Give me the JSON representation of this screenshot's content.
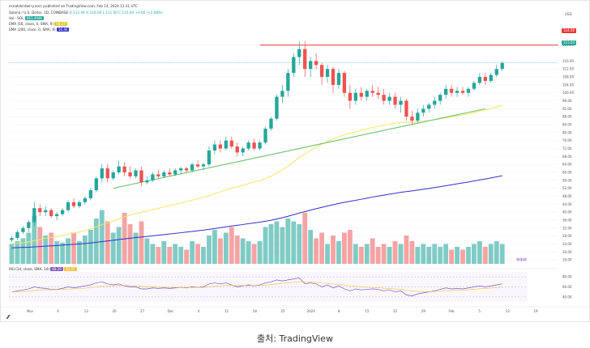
{
  "header": {
    "author": "ecoatskinberry.aorc published on TradingView.com, Feb 14, 2024 11:31 UTC",
    "symbol_line": "Solana / U.S. Dollar, 1D, COINBASE",
    "ohlc": "O 112.04  H 116.00  L 111.00  C 115.04  +3.00 (+2.68%)",
    "vol_label": "Vol · SOL",
    "vol_value": "861.494K",
    "ema50_label": "EMA (50, close, 0, SMA, 9)",
    "ema50_value": "94.17",
    "ema200_label": "EMA (200, close, 0, SMA, 9)",
    "ema200_value": "56.46",
    "rsi_label": "RSI (14, close, SMA, 14)",
    "rsi_value1": "68.29",
    "rsi_value2": "62.97"
  },
  "axis": {
    "currency": "USD",
    "price_ticks": [
      "124.00",
      "116.00",
      "112.00",
      "108.00",
      "104.00",
      "100.00",
      "96.00",
      "92.00",
      "88.00",
      "84.00",
      "80.00",
      "76.00",
      "72.00",
      "68.00",
      "64.00",
      "60.00",
      "56.00",
      "52.00",
      "48.00",
      "44.00",
      "40.00",
      "36.00",
      "32.00",
      "28.00",
      "24.00",
      "20.00",
      "16.00"
    ],
    "rsi_ticks": [
      "80.00",
      "60.00",
      "40.00"
    ],
    "x_ticks": [
      "Nov",
      "6",
      "13",
      "20",
      "27",
      "Dec",
      "4",
      "11",
      "18",
      "25",
      "2024",
      "8",
      "15",
      "22",
      "29",
      "Feb",
      "5",
      "12",
      "19"
    ],
    "resistance_tag": "124.00",
    "last_price_tag": "115.04"
  },
  "colors": {
    "up": "#26a69a",
    "down": "#ef5350",
    "ema50": "#f5e663",
    "ema200": "#3030c8",
    "trendline": "#6fbf6f",
    "resistance": "#e53935",
    "rsi": "#7e57c2"
  },
  "chart_data": {
    "type": "candlestick",
    "y_range": [
      14,
      130
    ],
    "resistance_level": 124,
    "last_price": 115.04,
    "candles": [
      [
        26,
        28,
        25,
        27
      ],
      [
        27,
        31,
        26,
        30
      ],
      [
        30,
        33,
        29,
        32
      ],
      [
        32,
        36,
        30,
        35
      ],
      [
        35,
        45,
        33,
        42
      ],
      [
        42,
        44,
        38,
        40
      ],
      [
        40,
        43,
        38,
        41
      ],
      [
        41,
        42,
        37,
        38
      ],
      [
        38,
        40,
        36,
        39
      ],
      [
        39,
        42,
        38,
        41
      ],
      [
        41,
        46,
        40,
        45
      ],
      [
        45,
        47,
        42,
        43
      ],
      [
        43,
        46,
        42,
        45
      ],
      [
        45,
        48,
        44,
        47
      ],
      [
        47,
        52,
        46,
        51
      ],
      [
        51,
        58,
        50,
        57
      ],
      [
        57,
        64,
        55,
        62
      ],
      [
        62,
        64,
        55,
        57
      ],
      [
        57,
        61,
        56,
        60
      ],
      [
        60,
        66,
        59,
        63
      ],
      [
        63,
        65,
        58,
        60
      ],
      [
        60,
        63,
        57,
        58
      ],
      [
        58,
        62,
        57,
        61
      ],
      [
        61,
        63,
        53,
        55
      ],
      [
        55,
        58,
        54,
        56
      ],
      [
        56,
        60,
        55,
        59
      ],
      [
        59,
        61,
        57,
        58
      ],
      [
        58,
        61,
        57,
        60
      ],
      [
        60,
        62,
        58,
        59
      ],
      [
        59,
        62,
        58,
        61
      ],
      [
        61,
        63,
        59,
        62
      ],
      [
        62,
        63,
        60,
        61
      ],
      [
        61,
        65,
        60,
        64
      ],
      [
        64,
        66,
        62,
        63
      ],
      [
        63,
        65,
        61,
        64
      ],
      [
        64,
        73,
        63,
        71
      ],
      [
        71,
        76,
        69,
        74
      ],
      [
        74,
        76,
        70,
        72
      ],
      [
        72,
        78,
        71,
        76
      ],
      [
        76,
        78,
        72,
        73
      ],
      [
        73,
        75,
        68,
        70
      ],
      [
        70,
        73,
        68,
        72
      ],
      [
        72,
        76,
        71,
        75
      ],
      [
        75,
        77,
        71,
        72
      ],
      [
        72,
        76,
        71,
        75
      ],
      [
        75,
        83,
        74,
        82
      ],
      [
        82,
        88,
        81,
        87
      ],
      [
        87,
        99,
        86,
        98
      ],
      [
        98,
        104,
        95,
        101
      ],
      [
        101,
        112,
        98,
        110
      ],
      [
        110,
        120,
        108,
        118
      ],
      [
        118,
        126,
        114,
        122
      ],
      [
        122,
        126,
        108,
        112
      ],
      [
        112,
        118,
        108,
        116
      ],
      [
        116,
        120,
        112,
        114
      ],
      [
        114,
        115,
        104,
        108
      ],
      [
        108,
        114,
        105,
        112
      ],
      [
        112,
        113,
        100,
        104
      ],
      [
        104,
        112,
        102,
        110
      ],
      [
        110,
        111,
        98,
        100
      ],
      [
        100,
        104,
        92,
        96
      ],
      [
        96,
        102,
        94,
        100
      ],
      [
        100,
        103,
        96,
        98
      ],
      [
        98,
        102,
        96,
        101
      ],
      [
        101,
        104,
        98,
        100
      ],
      [
        100,
        103,
        97,
        99
      ],
      [
        99,
        102,
        94,
        96
      ],
      [
        96,
        100,
        94,
        98
      ],
      [
        98,
        100,
        92,
        94
      ],
      [
        94,
        98,
        90,
        96
      ],
      [
        96,
        97,
        86,
        88
      ],
      [
        88,
        91,
        84,
        86
      ],
      [
        86,
        92,
        85,
        90
      ],
      [
        90,
        94,
        88,
        92
      ],
      [
        92,
        95,
        90,
        94
      ],
      [
        94,
        98,
        92,
        96
      ],
      [
        96,
        100,
        94,
        99
      ],
      [
        99,
        104,
        97,
        102
      ],
      [
        102,
        104,
        98,
        100
      ],
      [
        100,
        103,
        98,
        101
      ],
      [
        101,
        103,
        99,
        100
      ],
      [
        100,
        103,
        98,
        102
      ],
      [
        102,
        106,
        101,
        105
      ],
      [
        105,
        110,
        104,
        108
      ],
      [
        108,
        110,
        104,
        106
      ],
      [
        106,
        110,
        105,
        109
      ],
      [
        109,
        114,
        108,
        112
      ],
      [
        112,
        116,
        111,
        115
      ]
    ],
    "volume": [
      [
        14,
        1
      ],
      [
        16,
        1
      ],
      [
        18,
        1
      ],
      [
        22,
        1
      ],
      [
        34,
        1
      ],
      [
        26,
        0
      ],
      [
        20,
        1
      ],
      [
        22,
        0
      ],
      [
        16,
        1
      ],
      [
        15,
        1
      ],
      [
        18,
        1
      ],
      [
        22,
        0
      ],
      [
        16,
        1
      ],
      [
        20,
        1
      ],
      [
        24,
        1
      ],
      [
        32,
        1
      ],
      [
        38,
        1
      ],
      [
        30,
        0
      ],
      [
        22,
        1
      ],
      [
        26,
        1
      ],
      [
        36,
        0
      ],
      [
        28,
        0
      ],
      [
        22,
        1
      ],
      [
        30,
        0
      ],
      [
        18,
        1
      ],
      [
        14,
        1
      ],
      [
        12,
        0
      ],
      [
        16,
        1
      ],
      [
        12,
        0
      ],
      [
        14,
        1
      ],
      [
        12,
        1
      ],
      [
        10,
        0
      ],
      [
        16,
        1
      ],
      [
        14,
        0
      ],
      [
        12,
        1
      ],
      [
        20,
        1
      ],
      [
        24,
        1
      ],
      [
        18,
        0
      ],
      [
        22,
        1
      ],
      [
        26,
        0
      ],
      [
        20,
        0
      ],
      [
        18,
        1
      ],
      [
        16,
        1
      ],
      [
        14,
        0
      ],
      [
        16,
        1
      ],
      [
        26,
        1
      ],
      [
        28,
        1
      ],
      [
        30,
        1
      ],
      [
        26,
        1
      ],
      [
        32,
        1
      ],
      [
        30,
        1
      ],
      [
        28,
        1
      ],
      [
        36,
        0
      ],
      [
        24,
        1
      ],
      [
        18,
        0
      ],
      [
        22,
        0
      ],
      [
        14,
        1
      ],
      [
        20,
        0
      ],
      [
        16,
        1
      ],
      [
        22,
        0
      ],
      [
        24,
        0
      ],
      [
        14,
        1
      ],
      [
        12,
        0
      ],
      [
        14,
        1
      ],
      [
        18,
        0
      ],
      [
        12,
        0
      ],
      [
        14,
        0
      ],
      [
        12,
        1
      ],
      [
        16,
        0
      ],
      [
        14,
        1
      ],
      [
        20,
        0
      ],
      [
        16,
        0
      ],
      [
        12,
        1
      ],
      [
        14,
        1
      ],
      [
        12,
        1
      ],
      [
        14,
        1
      ],
      [
        12,
        1
      ],
      [
        14,
        1
      ],
      [
        10,
        0
      ],
      [
        12,
        1
      ],
      [
        10,
        0
      ],
      [
        12,
        1
      ],
      [
        14,
        1
      ],
      [
        16,
        1
      ],
      [
        12,
        0
      ],
      [
        14,
        1
      ],
      [
        16,
        1
      ],
      [
        14,
        1
      ]
    ],
    "rsi": [
      50,
      52,
      54,
      56,
      60,
      58,
      57,
      55,
      55,
      57,
      60,
      58,
      60,
      62,
      64,
      68,
      70,
      66,
      64,
      66,
      62,
      60,
      60,
      56,
      56,
      58,
      57,
      58,
      57,
      58,
      59,
      58,
      60,
      59,
      60,
      66,
      68,
      66,
      68,
      64,
      60,
      62,
      64,
      62,
      64,
      68,
      70,
      74,
      72,
      74,
      76,
      78,
      66,
      68,
      66,
      60,
      64,
      58,
      62,
      56,
      52,
      56,
      54,
      55,
      56,
      55,
      52,
      54,
      50,
      52,
      44,
      42,
      46,
      48,
      50,
      52,
      55,
      58,
      56,
      57,
      56,
      58,
      60,
      62,
      60,
      62,
      64,
      66
    ]
  },
  "caption": "출처: TradingView"
}
